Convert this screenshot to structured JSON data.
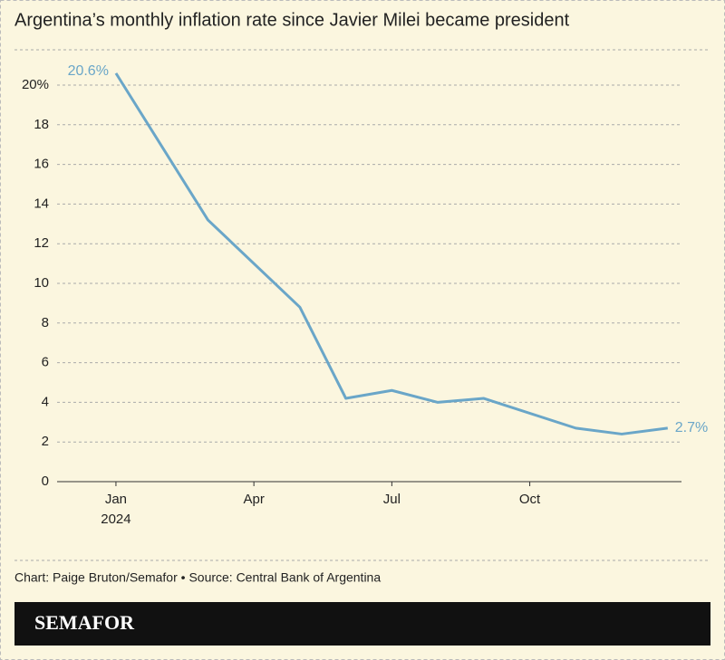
{
  "chart_data": {
    "type": "line",
    "title": "Argentina’s monthly inflation rate since Javier Milei became president",
    "x": [
      0,
      2,
      4,
      5,
      6,
      7,
      8,
      10,
      11,
      12
    ],
    "series": [
      {
        "color": "#6aa6c8",
        "values": [
          20.6,
          13.2,
          8.8,
          4.2,
          4.6,
          4.0,
          4.2,
          2.7,
          2.4,
          2.7
        ],
        "value_labels": [
          "20.6%",
          null,
          null,
          null,
          null,
          null,
          null,
          null,
          null,
          "2.7%"
        ]
      }
    ],
    "xlim": [
      -1.28,
      12.3
    ],
    "xticks": [
      {
        "value": 0,
        "label": "Jan",
        "sublabel": "2024"
      },
      {
        "value": 3,
        "label": "Apr"
      },
      {
        "value": 6,
        "label": "Jul"
      },
      {
        "value": 9,
        "label": "Oct"
      }
    ],
    "ylim": [
      0,
      20
    ],
    "yticks": [
      0,
      2,
      4,
      6,
      8,
      10,
      12,
      14,
      16,
      18,
      {
        "value": 20,
        "label": "20%"
      }
    ],
    "grid": true,
    "source": "Chart: Paige Bruton/Semafor • Source: Central Bank of Argentina",
    "brand": "SEMAFOR"
  }
}
